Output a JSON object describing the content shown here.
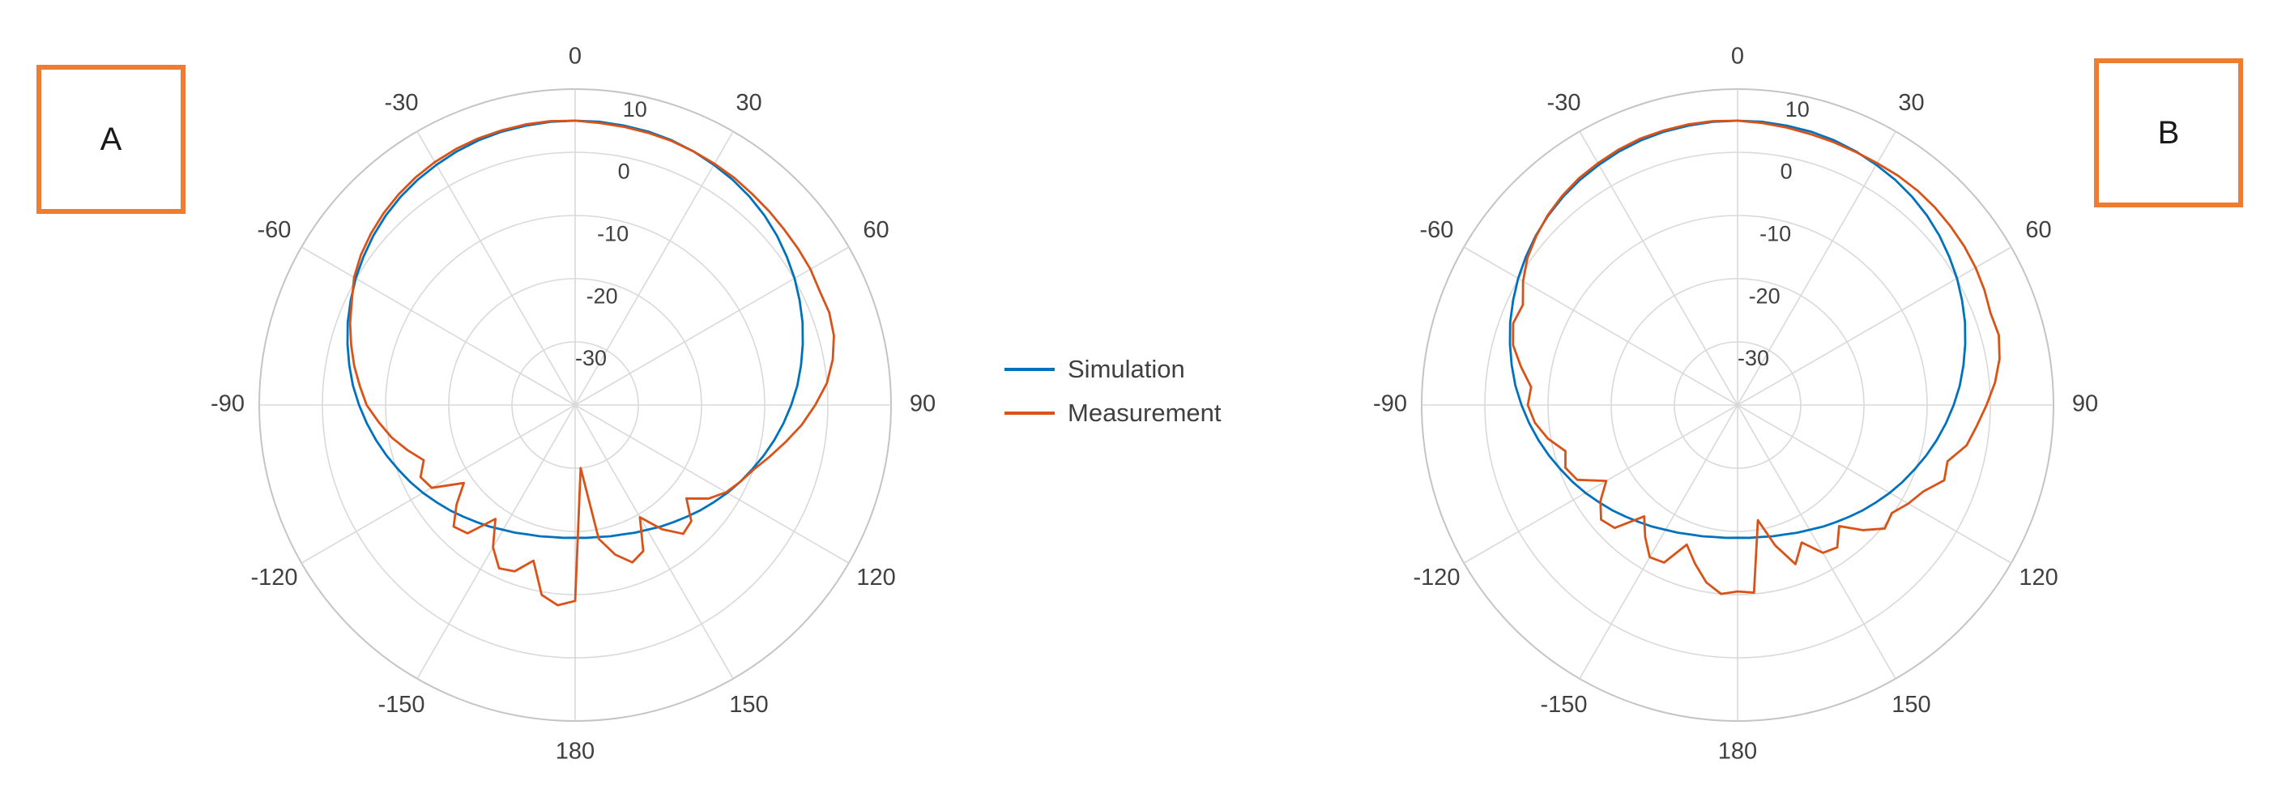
{
  "panels": [
    {
      "label": "A"
    },
    {
      "label": "B"
    }
  ],
  "legend": {
    "items": [
      {
        "label": "Simulation",
        "color": "#0072BD"
      },
      {
        "label": "Measurement",
        "color": "#D95319"
      }
    ]
  },
  "colors": {
    "simulation_blue": "#0072BD",
    "measurement_orange": "#D95319",
    "panel_box_orange": "#ED7D31",
    "grid_gray": "#d9d9d9",
    "outer_ring_gray": "#c4c4c4",
    "tick_text_gray": "#404040"
  },
  "chart_data": [
    {
      "type": "line",
      "projection": "polar",
      "title": "A",
      "angle_unit": "degrees",
      "theta_zero_location": "top",
      "theta_direction": "clockwise",
      "theta_ticks": [
        0,
        30,
        60,
        90,
        120,
        150,
        180,
        -150,
        -120,
        -90,
        -60,
        -30
      ],
      "r_ticks": [
        10,
        0,
        -10,
        -20,
        -30
      ],
      "rlim": [
        -40,
        10
      ],
      "grid": true,
      "angles_deg": [
        -180,
        -175,
        -170,
        -165,
        -160,
        -155,
        -150,
        -145,
        -140,
        -135,
        -130,
        -125,
        -120,
        -115,
        -110,
        -105,
        -100,
        -95,
        -90,
        -85,
        -80,
        -75,
        -70,
        -65,
        -60,
        -55,
        -50,
        -45,
        -40,
        -35,
        -30,
        -25,
        -20,
        -15,
        -10,
        -5,
        0,
        5,
        10,
        15,
        20,
        25,
        30,
        35,
        40,
        45,
        50,
        55,
        60,
        65,
        70,
        75,
        80,
        85,
        90,
        95,
        100,
        105,
        110,
        115,
        120,
        125,
        130,
        135,
        140,
        145,
        150,
        155,
        160,
        165,
        170,
        175,
        180
      ],
      "series": [
        {
          "name": "Simulation",
          "color": "#0072BD",
          "values": [
            -19.0,
            -18.9,
            -18.8,
            -18.5,
            -18.2,
            -17.7,
            -17.2,
            -16.5,
            -15.8,
            -15.0,
            -14.1,
            -13.2,
            -12.2,
            -11.2,
            -10.2,
            -9.1,
            -8.0,
            -6.9,
            -5.8,
            -4.7,
            -3.7,
            -2.7,
            -1.7,
            -0.8,
            0.1,
            0.9,
            1.7,
            2.4,
            3.0,
            3.5,
            3.9,
            4.3,
            4.6,
            4.8,
            4.9,
            5.0,
            5.0,
            5.0,
            4.9,
            4.8,
            4.6,
            4.3,
            3.9,
            3.5,
            3.0,
            2.4,
            1.7,
            0.9,
            0.1,
            -0.8,
            -1.7,
            -2.7,
            -3.7,
            -4.7,
            -5.8,
            -6.9,
            -8.0,
            -9.1,
            -10.2,
            -11.2,
            -12.2,
            -13.2,
            -14.1,
            -15.0,
            -15.8,
            -16.5,
            -17.2,
            -17.7,
            -18.2,
            -18.5,
            -18.8,
            -18.9,
            -19.0
          ]
        },
        {
          "name": "Measurement",
          "color": "#D95319",
          "values": [
            -9.0,
            -8.2,
            -9.5,
            -14.5,
            -12.0,
            -11.5,
            -14.0,
            -18.0,
            -13.5,
            -12.8,
            -15.5,
            -18.5,
            -13.8,
            -13.0,
            -14.5,
            -12.5,
            -10.5,
            -8.8,
            -7.0,
            -5.8,
            -4.5,
            -3.3,
            -2.1,
            -1.0,
            0.4,
            1.4,
            2.2,
            2.9,
            3.5,
            4.0,
            4.4,
            4.7,
            4.9,
            5.0,
            5.1,
            5.1,
            5.0,
            4.8,
            4.7,
            4.6,
            4.5,
            4.3,
            4.1,
            3.9,
            3.6,
            3.4,
            3.2,
            3.1,
            3.0,
            2.7,
            2.8,
            2.4,
            1.4,
            0.0,
            -2.0,
            -4.0,
            -6.2,
            -8.2,
            -10.0,
            -11.2,
            -12.4,
            -14.2,
            -17.0,
            -14.0,
            -13.4,
            -16.0,
            -19.5,
            -14.5,
            -13.5,
            -15.5,
            -18.5,
            -30.0,
            -9.0
          ]
        }
      ]
    },
    {
      "type": "line",
      "projection": "polar",
      "title": "B",
      "angle_unit": "degrees",
      "theta_zero_location": "top",
      "theta_direction": "clockwise",
      "theta_ticks": [
        0,
        30,
        60,
        90,
        120,
        150,
        180,
        -150,
        -120,
        -90,
        -60,
        -30
      ],
      "r_ticks": [
        10,
        0,
        -10,
        -20,
        -30
      ],
      "rlim": [
        -40,
        10
      ],
      "grid": true,
      "angles_deg": [
        -180,
        -175,
        -170,
        -165,
        -160,
        -155,
        -150,
        -145,
        -140,
        -135,
        -130,
        -125,
        -120,
        -115,
        -110,
        -105,
        -100,
        -95,
        -90,
        -85,
        -80,
        -75,
        -70,
        -65,
        -60,
        -55,
        -50,
        -45,
        -40,
        -35,
        -30,
        -25,
        -20,
        -15,
        -10,
        -5,
        0,
        5,
        10,
        15,
        20,
        25,
        30,
        35,
        40,
        45,
        50,
        55,
        60,
        65,
        70,
        75,
        80,
        85,
        90,
        95,
        100,
        105,
        110,
        115,
        120,
        125,
        130,
        135,
        140,
        145,
        150,
        155,
        160,
        165,
        170,
        175,
        180
      ],
      "series": [
        {
          "name": "Simulation",
          "color": "#0072BD",
          "values": [
            -19.0,
            -18.9,
            -18.8,
            -18.5,
            -18.2,
            -17.7,
            -17.2,
            -16.5,
            -15.8,
            -15.0,
            -14.1,
            -13.2,
            -12.2,
            -11.2,
            -10.2,
            -9.1,
            -8.0,
            -6.9,
            -5.8,
            -4.7,
            -3.7,
            -2.7,
            -1.7,
            -0.8,
            0.1,
            0.9,
            1.7,
            2.4,
            3.0,
            3.5,
            3.9,
            4.3,
            4.6,
            4.8,
            4.9,
            5.0,
            5.0,
            5.0,
            4.9,
            4.8,
            4.6,
            4.3,
            3.9,
            3.5,
            3.0,
            2.4,
            1.7,
            0.9,
            0.1,
            -0.8,
            -1.7,
            -2.7,
            -3.7,
            -4.7,
            -5.8,
            -6.9,
            -8.0,
            -9.1,
            -10.2,
            -11.2,
            -12.2,
            -13.2,
            -14.1,
            -15.0,
            -15.8,
            -16.5,
            -17.2,
            -17.7,
            -18.2,
            -18.5,
            -18.8,
            -18.9,
            -19.0
          ]
        },
        {
          "name": "Measurement",
          "color": "#D95319",
          "values": [
            -10.5,
            -10.0,
            -11.5,
            -14.0,
            -16.5,
            -12.5,
            -12.2,
            -14.5,
            -17.0,
            -12.5,
            -11.8,
            -13.5,
            -16.0,
            -12.0,
            -11.0,
            -11.8,
            -9.5,
            -7.8,
            -6.8,
            -7.2,
            -5.2,
            -3.2,
            -2.2,
            -2.5,
            -0.8,
            0.6,
            1.6,
            2.5,
            3.2,
            3.8,
            4.2,
            4.6,
            4.9,
            5.0,
            5.1,
            5.1,
            5.0,
            4.8,
            4.6,
            4.4,
            4.3,
            4.2,
            4.2,
            4.3,
            4.3,
            4.2,
            4.0,
            3.8,
            3.5,
            3.1,
            2.6,
            2.8,
            2.1,
            0.9,
            -0.6,
            -2.0,
            -3.2,
            -5.6,
            -5.2,
            -7.6,
            -8.8,
            -10.2,
            -9.6,
            -12.0,
            -15.0,
            -12.5,
            -13.0,
            -16.0,
            -13.2,
            -17.0,
            -21.5,
            -10.2,
            -10.5
          ]
        }
      ]
    }
  ]
}
